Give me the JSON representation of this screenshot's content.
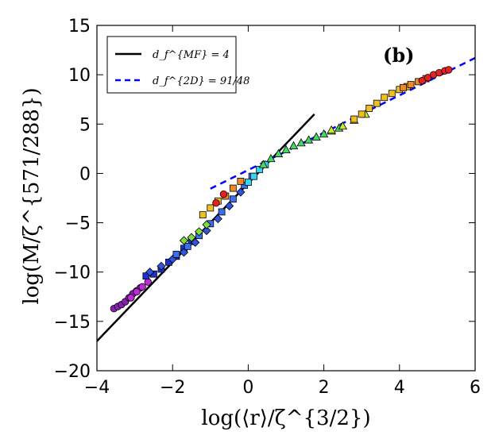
{
  "chart_data": {
    "type": "scatter",
    "panel_label": "(b)",
    "xlabel": "log(⟨r⟩/ζ^{3/2})",
    "ylabel": "log(M/ζ^{571/288})",
    "xlim": [
      -4,
      6
    ],
    "ylim": [
      -20,
      15
    ],
    "xticks": [
      -4,
      -2,
      0,
      2,
      4,
      6
    ],
    "yticks": [
      -20,
      -15,
      -10,
      -5,
      0,
      5,
      10,
      15
    ],
    "xtick_labels": [
      "−4",
      "−2",
      "0",
      "2",
      "4",
      "6"
    ],
    "ytick_labels": [
      "−20",
      "−15",
      "−10",
      "−5",
      "0",
      "5",
      "10",
      "15"
    ],
    "legend": {
      "placement": "top-left",
      "entries": [
        {
          "label": "d_f^{MF} = 4",
          "style": "solid",
          "color": "#000000"
        },
        {
          "label": "d_f^{2D} = 91/48",
          "style": "dashed",
          "color": "#0000ff"
        }
      ]
    },
    "lines": [
      {
        "name": "d_f^{MF} = 4",
        "style": "solid",
        "color": "#000000",
        "x": [
          -4.0,
          1.75
        ],
        "y": [
          -17.0,
          6.0
        ]
      },
      {
        "name": "d_f^{2D} = 91/48",
        "style": "dashed",
        "color": "#0000ff",
        "x": [
          -1.0,
          6.0
        ],
        "y": [
          -1.55,
          11.7
        ]
      }
    ],
    "series": [
      {
        "name": "purple circles",
        "marker": "circle",
        "color": "#8a1fb0",
        "x": [
          -3.55,
          -3.45,
          -3.35,
          -3.25,
          -3.15,
          -3.05,
          -2.95,
          -2.85
        ],
        "y": [
          -13.7,
          -13.5,
          -13.3,
          -13.0,
          -12.6,
          -12.2,
          -11.9,
          -11.6
        ]
      },
      {
        "name": "magenta",
        "marker": "circle",
        "color": "#c02ad8",
        "x": [
          -3.1,
          -2.95,
          -2.8,
          -2.65
        ],
        "y": [
          -12.6,
          -12.0,
          -11.5,
          -11.0
        ]
      },
      {
        "name": "dark blue squares",
        "marker": "square",
        "color": "#1f2fd0",
        "x": [
          -2.7,
          -2.5,
          -2.3,
          -2.1,
          -1.9,
          -1.7,
          -1.5
        ],
        "y": [
          -10.4,
          -10.2,
          -9.7,
          -9.0,
          -8.4,
          -7.6,
          -6.9
        ]
      },
      {
        "name": "blue diamonds",
        "marker": "diamond",
        "color": "#2f54e0",
        "x": [
          -2.6,
          -2.3,
          -2.0,
          -1.7,
          -1.4,
          -1.1,
          -0.8,
          -0.5,
          -0.2
        ],
        "y": [
          -10.0,
          -9.4,
          -8.7,
          -8.0,
          -7.0,
          -5.8,
          -4.6,
          -3.3,
          -1.9
        ]
      },
      {
        "name": "medium blue",
        "marker": "square",
        "color": "#3a6ff0",
        "x": [
          -1.9,
          -1.6,
          -1.3,
          -1.0,
          -0.7,
          -0.4,
          -0.1,
          0.1
        ],
        "y": [
          -8.2,
          -7.4,
          -6.3,
          -5.1,
          -3.9,
          -2.6,
          -1.2,
          -0.3
        ]
      },
      {
        "name": "cyan",
        "marker": "square",
        "color": "#33d8f0",
        "x": [
          0.0,
          0.15,
          0.3,
          0.45
        ],
        "y": [
          -0.9,
          -0.3,
          0.4,
          0.9
        ]
      },
      {
        "name": "green diamonds",
        "marker": "diamond",
        "color": "#7be03a",
        "x": [
          -1.7,
          -1.5,
          -1.3,
          -1.1
        ],
        "y": [
          -6.8,
          -6.5,
          -5.9,
          -5.2
        ]
      },
      {
        "name": "green triangles",
        "marker": "triangle",
        "color": "#46d860",
        "x": [
          0.4,
          0.6,
          0.8,
          1.0,
          1.2,
          1.4,
          1.6,
          1.8,
          2.0,
          2.2,
          2.4
        ],
        "y": [
          0.9,
          1.5,
          2.0,
          2.4,
          2.8,
          3.1,
          3.4,
          3.7,
          4.0,
          4.3,
          4.6
        ]
      },
      {
        "name": "yellow-green",
        "marker": "triangle",
        "color": "#c8e82a",
        "x": [
          2.2,
          2.5,
          2.8,
          3.1
        ],
        "y": [
          4.4,
          4.8,
          5.4,
          6.0
        ]
      },
      {
        "name": "yellow squares",
        "marker": "square",
        "color": "#f0c020",
        "x": [
          -1.2,
          -1.0,
          -0.8,
          2.8,
          3.0,
          3.2,
          3.4,
          3.6,
          3.8,
          4.0,
          4.2
        ],
        "y": [
          -4.2,
          -3.5,
          -2.8,
          5.5,
          6.0,
          6.6,
          7.1,
          7.7,
          8.1,
          8.5,
          8.8
        ]
      },
      {
        "name": "orange squares",
        "marker": "square",
        "color": "#f08a20",
        "x": [
          -0.6,
          -0.4,
          -0.2,
          4.1,
          4.3,
          4.5,
          4.7
        ],
        "y": [
          -2.3,
          -1.5,
          -0.8,
          8.7,
          9.0,
          9.3,
          9.6
        ]
      },
      {
        "name": "red circles",
        "marker": "circle",
        "color": "#e82020",
        "x": [
          -0.85,
          -0.65,
          4.6,
          4.75,
          4.9,
          5.05,
          5.2,
          5.3
        ],
        "y": [
          -3.0,
          -2.1,
          9.4,
          9.7,
          10.0,
          10.2,
          10.4,
          10.5
        ]
      }
    ]
  }
}
